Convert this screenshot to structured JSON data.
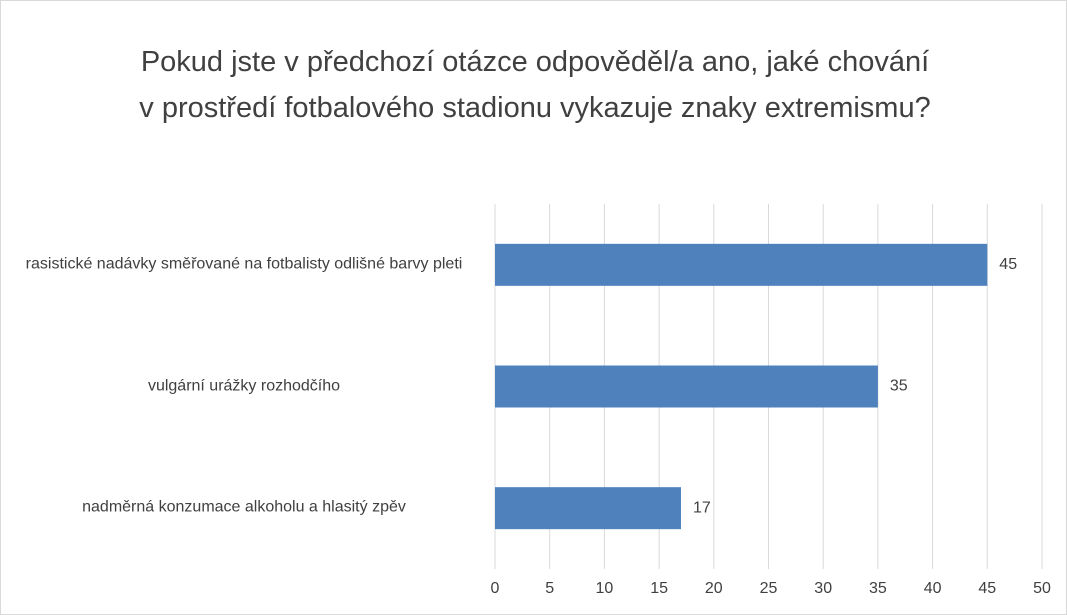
{
  "chart_data": {
    "type": "bar",
    "orientation": "horizontal",
    "title": "Pokud jste v předchozí otázce odpověděl/a ano, jaké chování v prostředí fotbalového stadionu vykazuje znaky extremismu?",
    "categories": [
      "rasistické nadávky směřované na fotbalisty odlišné barvy pleti",
      "vulgární urážky rozhodčího",
      "nadměrná konzumace alkoholu a hlasitý zpěv"
    ],
    "values": [
      45,
      35,
      17
    ],
    "color": "#4f81bd",
    "xlim": [
      0,
      50
    ],
    "xticks": [
      0,
      5,
      10,
      15,
      20,
      25,
      30,
      35,
      40,
      45,
      50
    ],
    "grid": true
  }
}
